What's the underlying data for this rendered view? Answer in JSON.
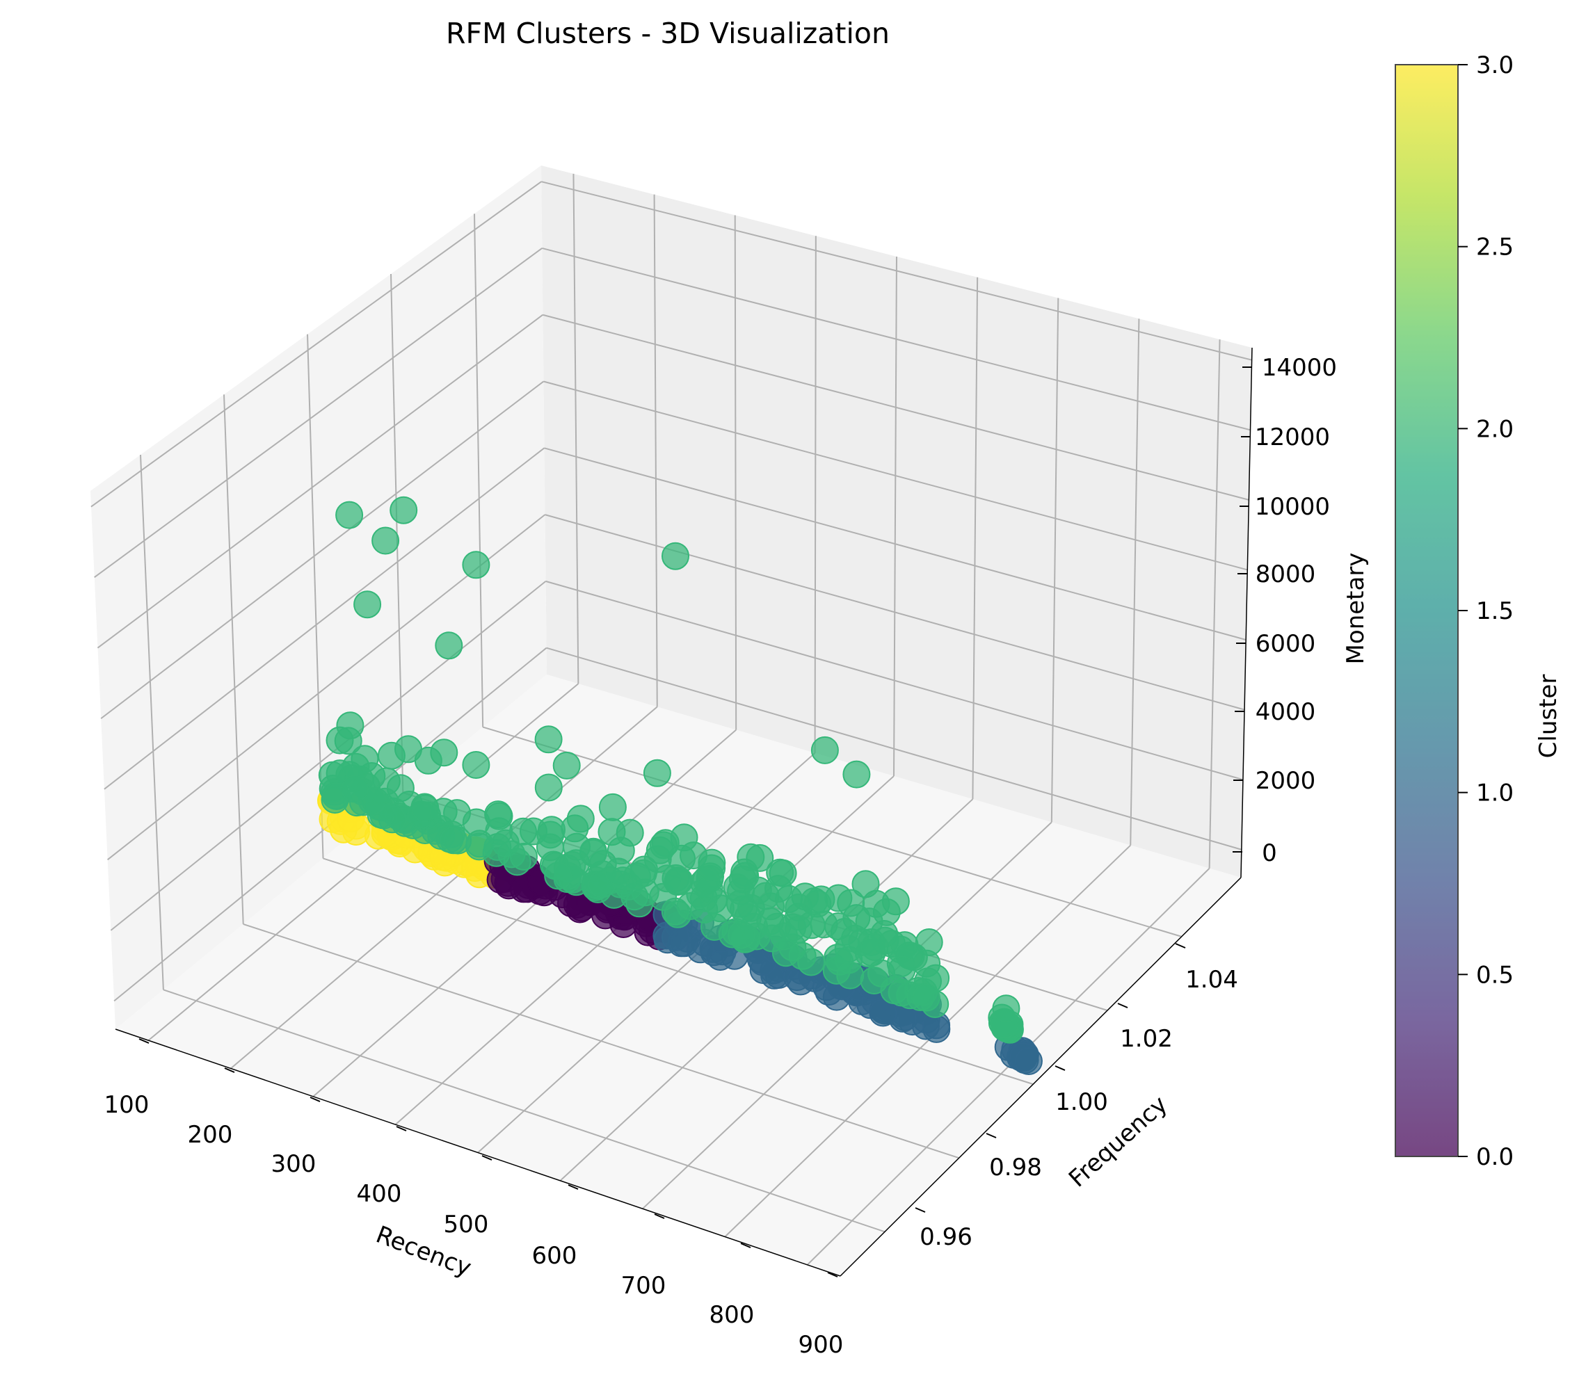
{
  "chart_data": {
    "type": "scatter",
    "title": "RFM Clusters - 3D Visualization",
    "xlabel": "Recency",
    "ylabel": "Frequency",
    "zlabel": "Monetary",
    "colorbar_label": "Cluster",
    "colormap": "viridis",
    "grid": true,
    "xlim": [
      100,
      900
    ],
    "ylim": [
      0.95,
      1.05
    ],
    "zlim": [
      -800,
      14400
    ],
    "x_ticks": [
      "100",
      "200",
      "300",
      "400",
      "500",
      "600",
      "700",
      "800",
      "900"
    ],
    "y_ticks": [
      "0.96",
      "0.98",
      "1.00",
      "1.02",
      "1.04"
    ],
    "z_ticks": [
      "0",
      "2000",
      "4000",
      "6000",
      "8000",
      "10000",
      "12000",
      "14000"
    ],
    "colorbar_ticks": [
      "0.0",
      "0.5",
      "1.0",
      "1.5",
      "2.0",
      "2.5",
      "3.0"
    ],
    "colorbar_range": [
      0,
      3
    ],
    "cluster_colors": {
      "0": "#440154",
      "1": "#31688e",
      "2": "#35b779",
      "3": "#fde725"
    },
    "series": [
      {
        "cluster": 3,
        "recency_range": [
          100,
          280
        ],
        "frequency": 1.0,
        "monetary_range": [
          0,
          800
        ]
      },
      {
        "cluster": 0,
        "recency_range": [
          280,
          470
        ],
        "frequency": 1.0,
        "monetary_range": [
          0,
          700
        ]
      },
      {
        "cluster": 1,
        "recency_range": [
          470,
          770
        ],
        "frequency": 1.0,
        "monetary_range": [
          0,
          900
        ]
      },
      {
        "cluster": 1,
        "recency_range": [
          840,
          870
        ],
        "frequency": 1.0,
        "monetary_range": [
          0,
          300
        ]
      },
      {
        "cluster": 2,
        "recency_range": [
          100,
          770
        ],
        "frequency": 1.0,
        "monetary_range": [
          800,
          3500
        ]
      },
      {
        "cluster": 2,
        "recency_range": [
          840,
          850
        ],
        "frequency": 1.0,
        "monetary_range": [
          800,
          1200
        ]
      }
    ],
    "outliers": [
      {
        "cluster": 2,
        "recency": 120,
        "frequency": 1.0,
        "monetary": 9500
      },
      {
        "cluster": 2,
        "recency": 160,
        "frequency": 1.0,
        "monetary": 9100
      },
      {
        "cluster": 2,
        "recency": 180,
        "frequency": 1.0,
        "monetary": 10200
      },
      {
        "cluster": 2,
        "recency": 260,
        "frequency": 1.0,
        "monetary": 9300
      },
      {
        "cluster": 2,
        "recency": 480,
        "frequency": 1.0,
        "monetary": 11600
      },
      {
        "cluster": 2,
        "recency": 140,
        "frequency": 1.0,
        "monetary": 7000
      },
      {
        "cluster": 2,
        "recency": 230,
        "frequency": 1.0,
        "monetary": 6600
      },
      {
        "cluster": 2,
        "recency": 340,
        "frequency": 1.0,
        "monetary": 4800
      },
      {
        "cluster": 2,
        "recency": 360,
        "frequency": 1.0,
        "monetary": 4200
      },
      {
        "cluster": 2,
        "recency": 460,
        "frequency": 1.0,
        "monetary": 4900
      },
      {
        "cluster": 2,
        "recency": 645,
        "frequency": 1.0,
        "monetary": 7300
      },
      {
        "cluster": 2,
        "recency": 680,
        "frequency": 1.0,
        "monetary": 6900
      },
      {
        "cluster": 2,
        "recency": 690,
        "frequency": 1.0,
        "monetary": 3700
      },
      {
        "cluster": 2,
        "recency": 660,
        "frequency": 1.0,
        "monetary": 3000
      },
      {
        "cluster": 2,
        "recency": 500,
        "frequency": 1.0,
        "monetary": 2800
      },
      {
        "cluster": 2,
        "recency": 520,
        "frequency": 1.0,
        "monetary": 2600
      },
      {
        "cluster": 2,
        "recency": 420,
        "frequency": 1.0,
        "monetary": 2200
      },
      {
        "cluster": 2,
        "recency": 760,
        "frequency": 1.0,
        "monetary": 2600
      },
      {
        "cluster": 2,
        "recency": 740,
        "frequency": 1.0,
        "monetary": 2000
      },
      {
        "cluster": 2,
        "recency": 700,
        "frequency": 1.0,
        "monetary": 1900
      },
      {
        "cluster": 2,
        "recency": 730,
        "frequency": 1.0,
        "monetary": 1500
      },
      {
        "cluster": 2,
        "recency": 560,
        "frequency": 1.0,
        "monetary": 1500
      },
      {
        "cluster": 2,
        "recency": 600,
        "frequency": 1.0,
        "monetary": 1300
      },
      {
        "cluster": 2,
        "recency": 845,
        "frequency": 1.0,
        "monetary": 1400
      },
      {
        "cluster": 1,
        "recency": 870,
        "frequency": 1.0,
        "monetary": 50
      }
    ]
  }
}
